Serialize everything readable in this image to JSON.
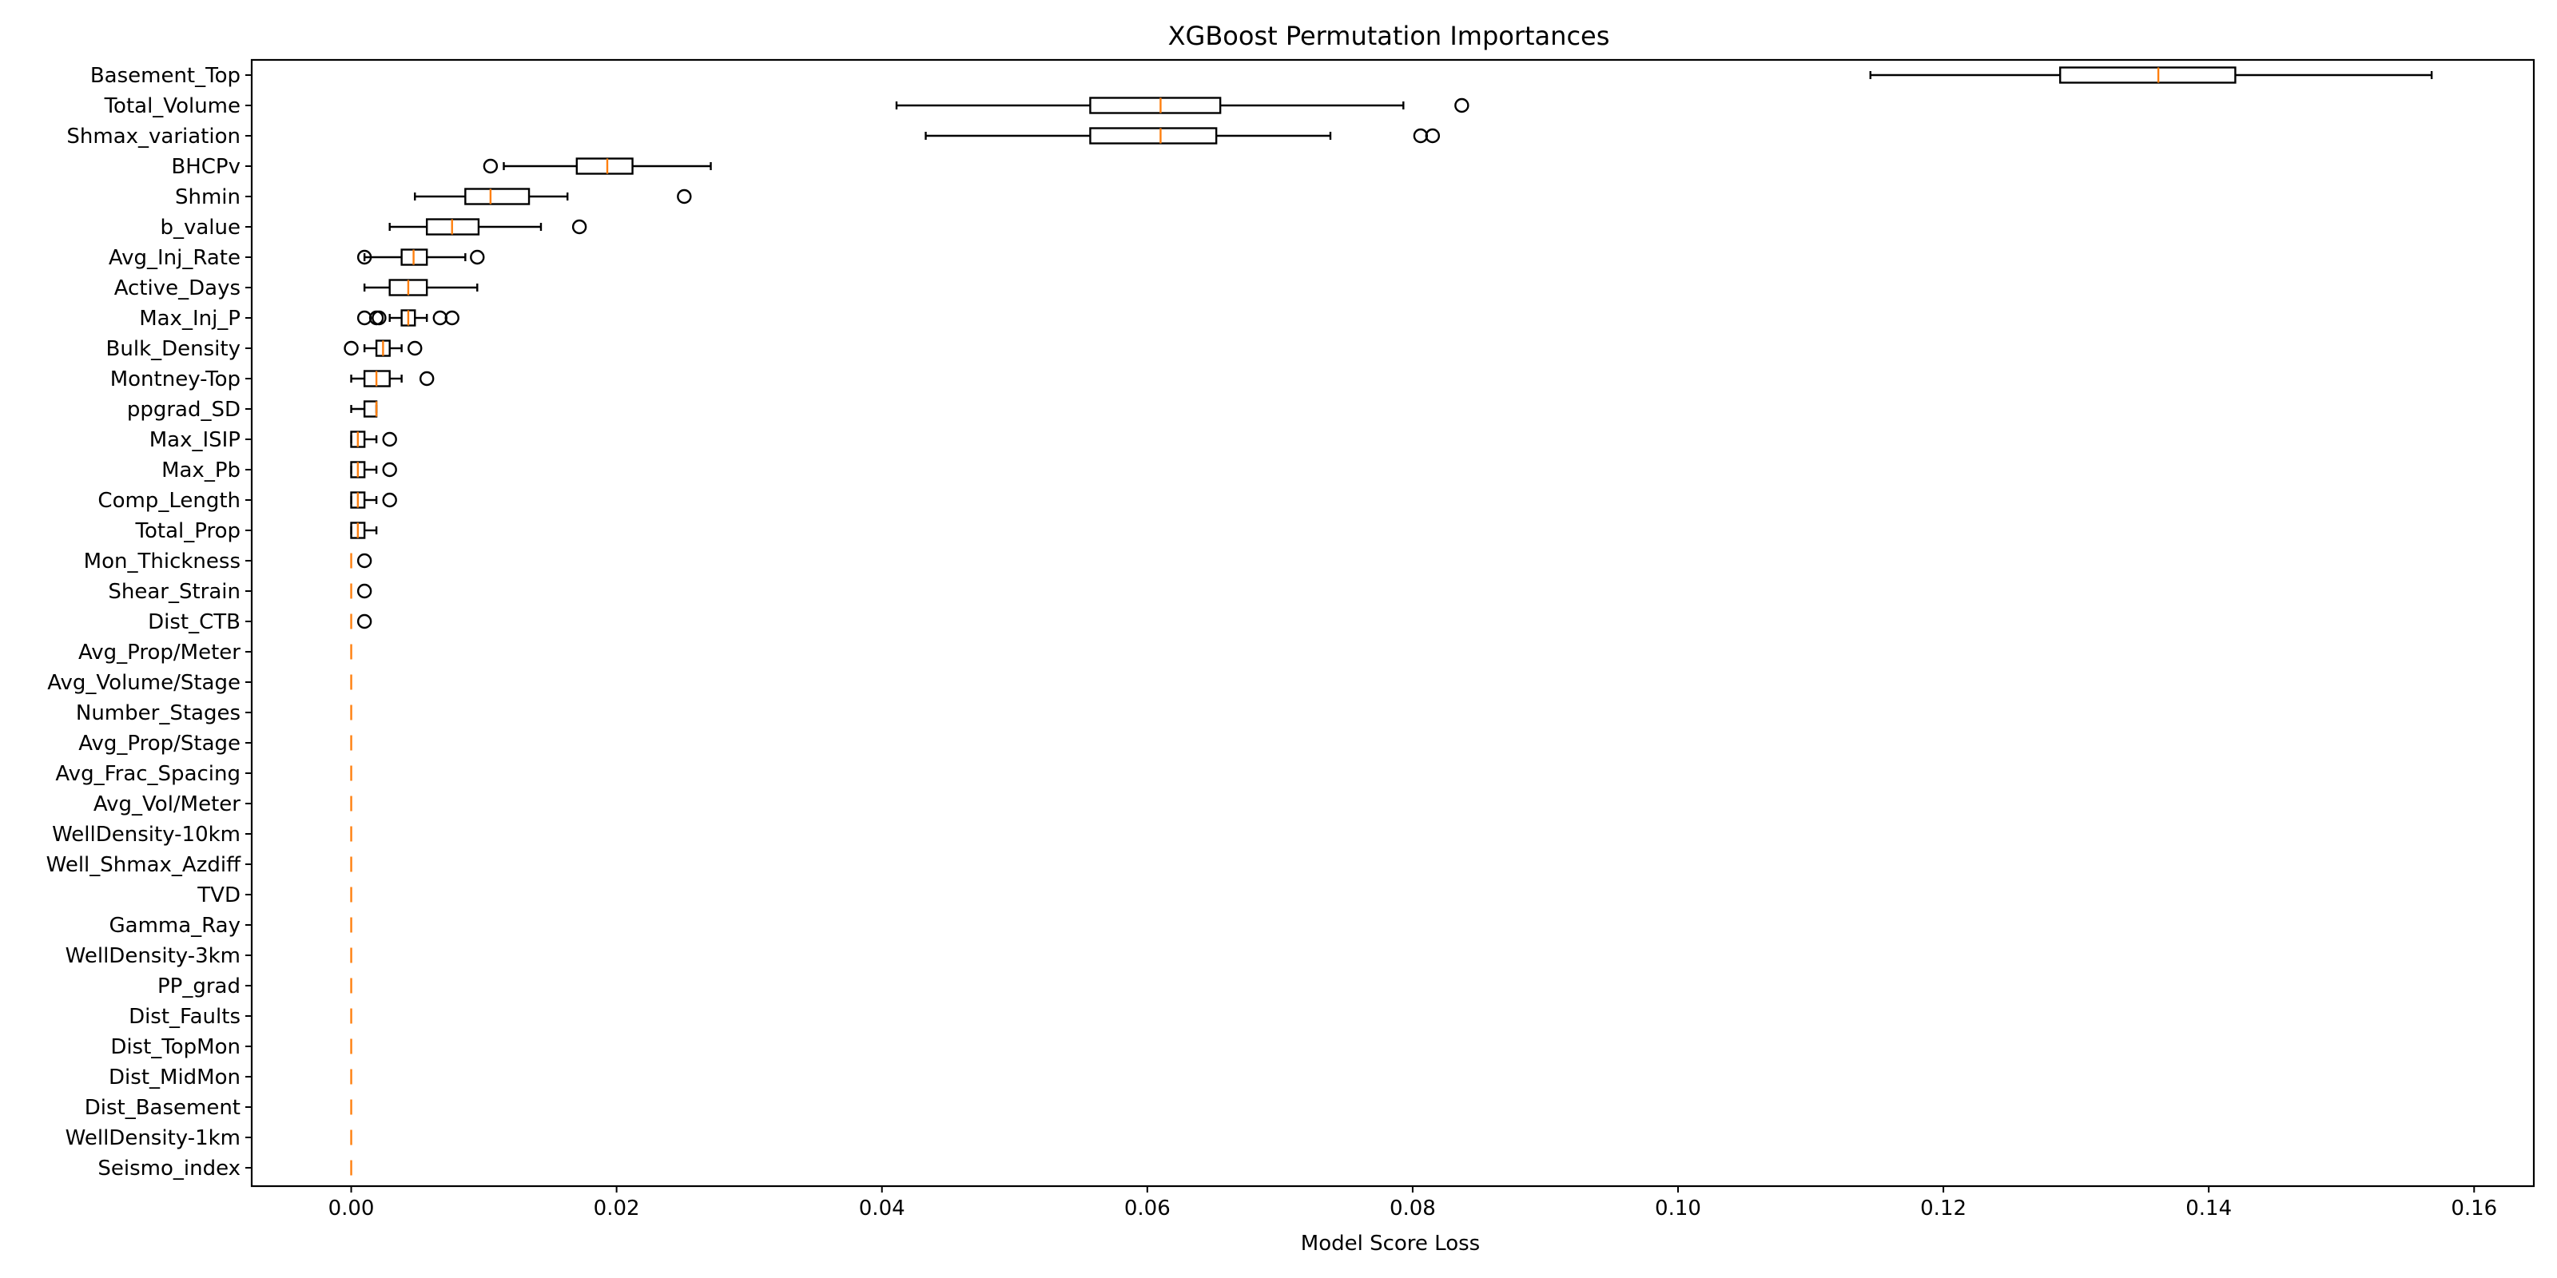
{
  "chart_data": {
    "type": "boxplot",
    "title": "XGBoost Permutation Importances",
    "xlabel": "Model Score Loss",
    "ylabel": "",
    "xlim": [
      -0.0075,
      0.1645
    ],
    "xticks": [
      0.0,
      0.02,
      0.04,
      0.06,
      0.08,
      0.1,
      0.12,
      0.14,
      0.16
    ],
    "xtick_labels": [
      "0.00",
      "0.02",
      "0.04",
      "0.06",
      "0.08",
      "0.10",
      "0.12",
      "0.14",
      "0.16"
    ],
    "grid": false,
    "colors": {
      "box": "#000000",
      "median": "#ff7f0e",
      "flier": "#000000"
    },
    "features": [
      {
        "name": "Basement_Top",
        "whislo": 0.1145,
        "q1": 0.1288,
        "med": 0.1362,
        "q3": 0.142,
        "whishi": 0.1568,
        "fliers": []
      },
      {
        "name": "Total_Volume",
        "whislo": 0.0411,
        "q1": 0.0557,
        "med": 0.061,
        "q3": 0.0655,
        "whishi": 0.0793,
        "fliers": [
          0.0837
        ]
      },
      {
        "name": "Shmax_variation",
        "whislo": 0.0433,
        "q1": 0.0557,
        "med": 0.061,
        "q3": 0.0652,
        "whishi": 0.0738,
        "fliers": [
          0.0806,
          0.0815
        ]
      },
      {
        "name": "BHCPv",
        "whislo": 0.0115,
        "q1": 0.017,
        "med": 0.0193,
        "q3": 0.0212,
        "whishi": 0.0271,
        "fliers": [
          0.0105
        ]
      },
      {
        "name": "Shmin",
        "whislo": 0.0048,
        "q1": 0.0086,
        "med": 0.0105,
        "q3": 0.0134,
        "whishi": 0.0163,
        "fliers": [
          0.0251
        ]
      },
      {
        "name": "b_value",
        "whislo": 0.0029,
        "q1": 0.0057,
        "med": 0.0076,
        "q3": 0.0096,
        "whishi": 0.0143,
        "fliers": [
          0.0172
        ]
      },
      {
        "name": "Avg_Inj_Rate",
        "whislo": 0.001,
        "q1": 0.0038,
        "med": 0.0047,
        "q3": 0.0057,
        "whishi": 0.0086,
        "fliers": [
          0.001,
          0.0095
        ]
      },
      {
        "name": "Active_Days",
        "whislo": 0.001,
        "q1": 0.0029,
        "med": 0.0043,
        "q3": 0.0057,
        "whishi": 0.0095,
        "fliers": []
      },
      {
        "name": "Max_Inj_P",
        "whislo": 0.0029,
        "q1": 0.0038,
        "med": 0.0043,
        "q3": 0.0048,
        "whishi": 0.0057,
        "fliers": [
          0.001,
          0.0019,
          0.0021,
          0.0067,
          0.0076
        ]
      },
      {
        "name": "Bulk_Density",
        "whislo": 0.001,
        "q1": 0.0019,
        "med": 0.0024,
        "q3": 0.0029,
        "whishi": 0.0038,
        "fliers": [
          0.0,
          0.0048
        ]
      },
      {
        "name": "Montney-Top",
        "whislo": 0.0,
        "q1": 0.001,
        "med": 0.0019,
        "q3": 0.0029,
        "whishi": 0.0038,
        "fliers": [
          0.0057
        ]
      },
      {
        "name": "ppgrad_SD",
        "whislo": 0.0,
        "q1": 0.001,
        "med": 0.0019,
        "q3": 0.0019,
        "whishi": 0.0019,
        "fliers": []
      },
      {
        "name": "Max_ISIP",
        "whislo": 0.0,
        "q1": 0.0,
        "med": 0.0005,
        "q3": 0.001,
        "whishi": 0.0019,
        "fliers": [
          0.0029
        ]
      },
      {
        "name": "Max_Pb",
        "whislo": 0.0,
        "q1": 0.0,
        "med": 0.0005,
        "q3": 0.001,
        "whishi": 0.0019,
        "fliers": [
          0.0029
        ]
      },
      {
        "name": "Comp_Length",
        "whislo": 0.0,
        "q1": 0.0,
        "med": 0.0005,
        "q3": 0.001,
        "whishi": 0.0019,
        "fliers": [
          0.0029
        ]
      },
      {
        "name": "Total_Prop",
        "whislo": 0.0,
        "q1": 0.0,
        "med": 0.0005,
        "q3": 0.001,
        "whishi": 0.0019,
        "fliers": []
      },
      {
        "name": "Mon_Thickness",
        "whislo": 0.0,
        "q1": 0.0,
        "med": 0.0,
        "q3": 0.0,
        "whishi": 0.0,
        "fliers": [
          0.001
        ]
      },
      {
        "name": "Shear_Strain",
        "whislo": 0.0,
        "q1": 0.0,
        "med": 0.0,
        "q3": 0.0,
        "whishi": 0.0,
        "fliers": [
          0.001
        ]
      },
      {
        "name": "Dist_CTB",
        "whislo": 0.0,
        "q1": 0.0,
        "med": 0.0,
        "q3": 0.0,
        "whishi": 0.0,
        "fliers": [
          0.001
        ]
      },
      {
        "name": "Avg_Prop/Meter",
        "whislo": 0,
        "q1": 0,
        "med": 0,
        "q3": 0,
        "whishi": 0,
        "fliers": []
      },
      {
        "name": "Avg_Volume/Stage",
        "whislo": 0,
        "q1": 0,
        "med": 0,
        "q3": 0,
        "whishi": 0,
        "fliers": []
      },
      {
        "name": "Number_Stages",
        "whislo": 0,
        "q1": 0,
        "med": 0,
        "q3": 0,
        "whishi": 0,
        "fliers": []
      },
      {
        "name": "Avg_Prop/Stage",
        "whislo": 0,
        "q1": 0,
        "med": 0,
        "q3": 0,
        "whishi": 0,
        "fliers": []
      },
      {
        "name": "Avg_Frac_Spacing",
        "whislo": 0,
        "q1": 0,
        "med": 0,
        "q3": 0,
        "whishi": 0,
        "fliers": []
      },
      {
        "name": "Avg_Vol/Meter",
        "whislo": 0,
        "q1": 0,
        "med": 0,
        "q3": 0,
        "whishi": 0,
        "fliers": []
      },
      {
        "name": "WellDensity-10km",
        "whislo": 0,
        "q1": 0,
        "med": 0,
        "q3": 0,
        "whishi": 0,
        "fliers": []
      },
      {
        "name": "Well_Shmax_Azdiff",
        "whislo": 0,
        "q1": 0,
        "med": 0,
        "q3": 0,
        "whishi": 0,
        "fliers": []
      },
      {
        "name": "TVD",
        "whislo": 0,
        "q1": 0,
        "med": 0,
        "q3": 0,
        "whishi": 0,
        "fliers": []
      },
      {
        "name": "Gamma_Ray",
        "whislo": 0,
        "q1": 0,
        "med": 0,
        "q3": 0,
        "whishi": 0,
        "fliers": []
      },
      {
        "name": "WellDensity-3km",
        "whislo": 0,
        "q1": 0,
        "med": 0,
        "q3": 0,
        "whishi": 0,
        "fliers": []
      },
      {
        "name": "PP_grad",
        "whislo": 0,
        "q1": 0,
        "med": 0,
        "q3": 0,
        "whishi": 0,
        "fliers": []
      },
      {
        "name": "Dist_Faults",
        "whislo": 0,
        "q1": 0,
        "med": 0,
        "q3": 0,
        "whishi": 0,
        "fliers": []
      },
      {
        "name": "Dist_TopMon",
        "whislo": 0,
        "q1": 0,
        "med": 0,
        "q3": 0,
        "whishi": 0,
        "fliers": []
      },
      {
        "name": "Dist_MidMon",
        "whislo": 0,
        "q1": 0,
        "med": 0,
        "q3": 0,
        "whishi": 0,
        "fliers": []
      },
      {
        "name": "Dist_Basement",
        "whislo": 0,
        "q1": 0,
        "med": 0,
        "q3": 0,
        "whishi": 0,
        "fliers": []
      },
      {
        "name": "WellDensity-1km",
        "whislo": 0,
        "q1": 0,
        "med": 0,
        "q3": 0,
        "whishi": 0,
        "fliers": []
      },
      {
        "name": "Seismo_index",
        "whislo": 0,
        "q1": 0,
        "med": 0,
        "q3": 0,
        "whishi": 0,
        "fliers": []
      }
    ]
  }
}
